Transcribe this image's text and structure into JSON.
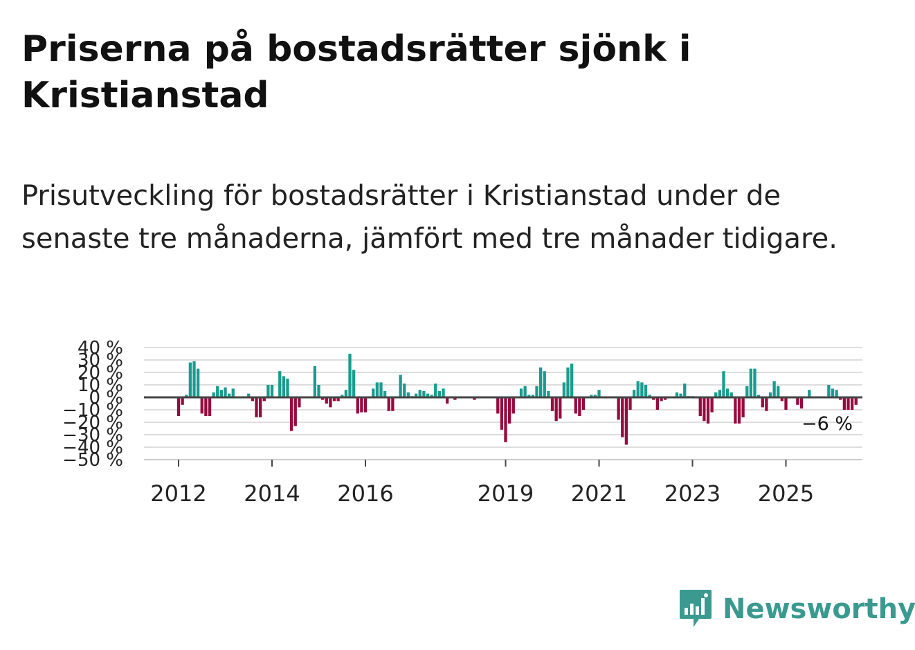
{
  "title": "Priserna på bostadsrätter sjönk i Kristianstad",
  "subtitle": "Prisutveckling för bostadsrätter i Kristianstad under de senaste tre månaderna, jämfört med tre månader tidigare.",
  "brand": {
    "name": "Newsworthy"
  },
  "colors": {
    "positive": "#1a9b8f",
    "negative": "#960b3f",
    "zero_line": "#444444",
    "grid": "#dddddd",
    "brand": "#3a9a8f"
  },
  "chart_data": {
    "type": "bar",
    "title": "Priserna på bostadsrätter sjönk i Kristianstad",
    "xlabel": "",
    "ylabel": "",
    "ylim": [
      -50,
      40
    ],
    "y_ticks": [
      40,
      30,
      20,
      10,
      0,
      -10,
      -20,
      -30,
      -40,
      -50
    ],
    "y_tick_labels": [
      "40 %",
      "30 %",
      "20 %",
      "10 %",
      "0 %",
      "−10 %",
      "−20 %",
      "−30 %",
      "−40 %",
      "−50 %"
    ],
    "x_tick_labels": [
      {
        "label": "2012",
        "index": 0
      },
      {
        "label": "2014",
        "index": 24
      },
      {
        "label": "2016",
        "index": 48
      },
      {
        "label": "2019",
        "index": 84
      },
      {
        "label": "2021",
        "index": 108
      },
      {
        "label": "2023",
        "index": 132
      },
      {
        "label": "2025",
        "index": 156
      }
    ],
    "annotation": "−6 %",
    "series": [
      {
        "name": "Prisutveckling",
        "values": [
          -15,
          -6,
          2,
          28,
          29,
          23,
          -13,
          -15,
          -15,
          4,
          9,
          6,
          8,
          3,
          7,
          0,
          0,
          0,
          3,
          -3,
          -16,
          -16,
          -3,
          10,
          10,
          0,
          21,
          17,
          15,
          -27,
          -23,
          -8,
          0,
          0,
          0,
          25,
          10,
          -2,
          -5,
          -8,
          -3,
          -3,
          2,
          6,
          35,
          22,
          -13,
          -12,
          -12,
          0,
          7,
          12,
          12,
          5,
          -11,
          -11,
          0,
          18,
          11,
          4,
          1,
          3,
          6,
          5,
          3,
          2,
          11,
          5,
          7,
          -5,
          0,
          -2,
          0,
          0,
          0,
          0,
          -2,
          0,
          0,
          0,
          0,
          0,
          -13,
          -26,
          -36,
          -21,
          -13,
          0,
          7,
          9,
          2,
          2,
          9,
          24,
          21,
          5,
          -11,
          -19,
          -17,
          12,
          24,
          27,
          -13,
          -15,
          -10,
          0,
          2,
          2,
          6,
          0,
          0,
          0,
          0,
          -18,
          -32,
          -38,
          -10,
          6,
          13,
          12,
          10,
          2,
          -2,
          -10,
          -3,
          -2,
          0,
          0,
          4,
          3,
          11,
          1,
          1,
          0,
          -15,
          -19,
          -21,
          -12,
          4,
          6,
          21,
          7,
          4,
          -21,
          -21,
          -16,
          9,
          23,
          23,
          2,
          -8,
          -11,
          4,
          13,
          9,
          -3,
          -10,
          0,
          0,
          -6,
          -9,
          0,
          6,
          0,
          0,
          0,
          0,
          10,
          7,
          6,
          -2,
          -10,
          -10,
          -10,
          -6
        ]
      }
    ]
  }
}
